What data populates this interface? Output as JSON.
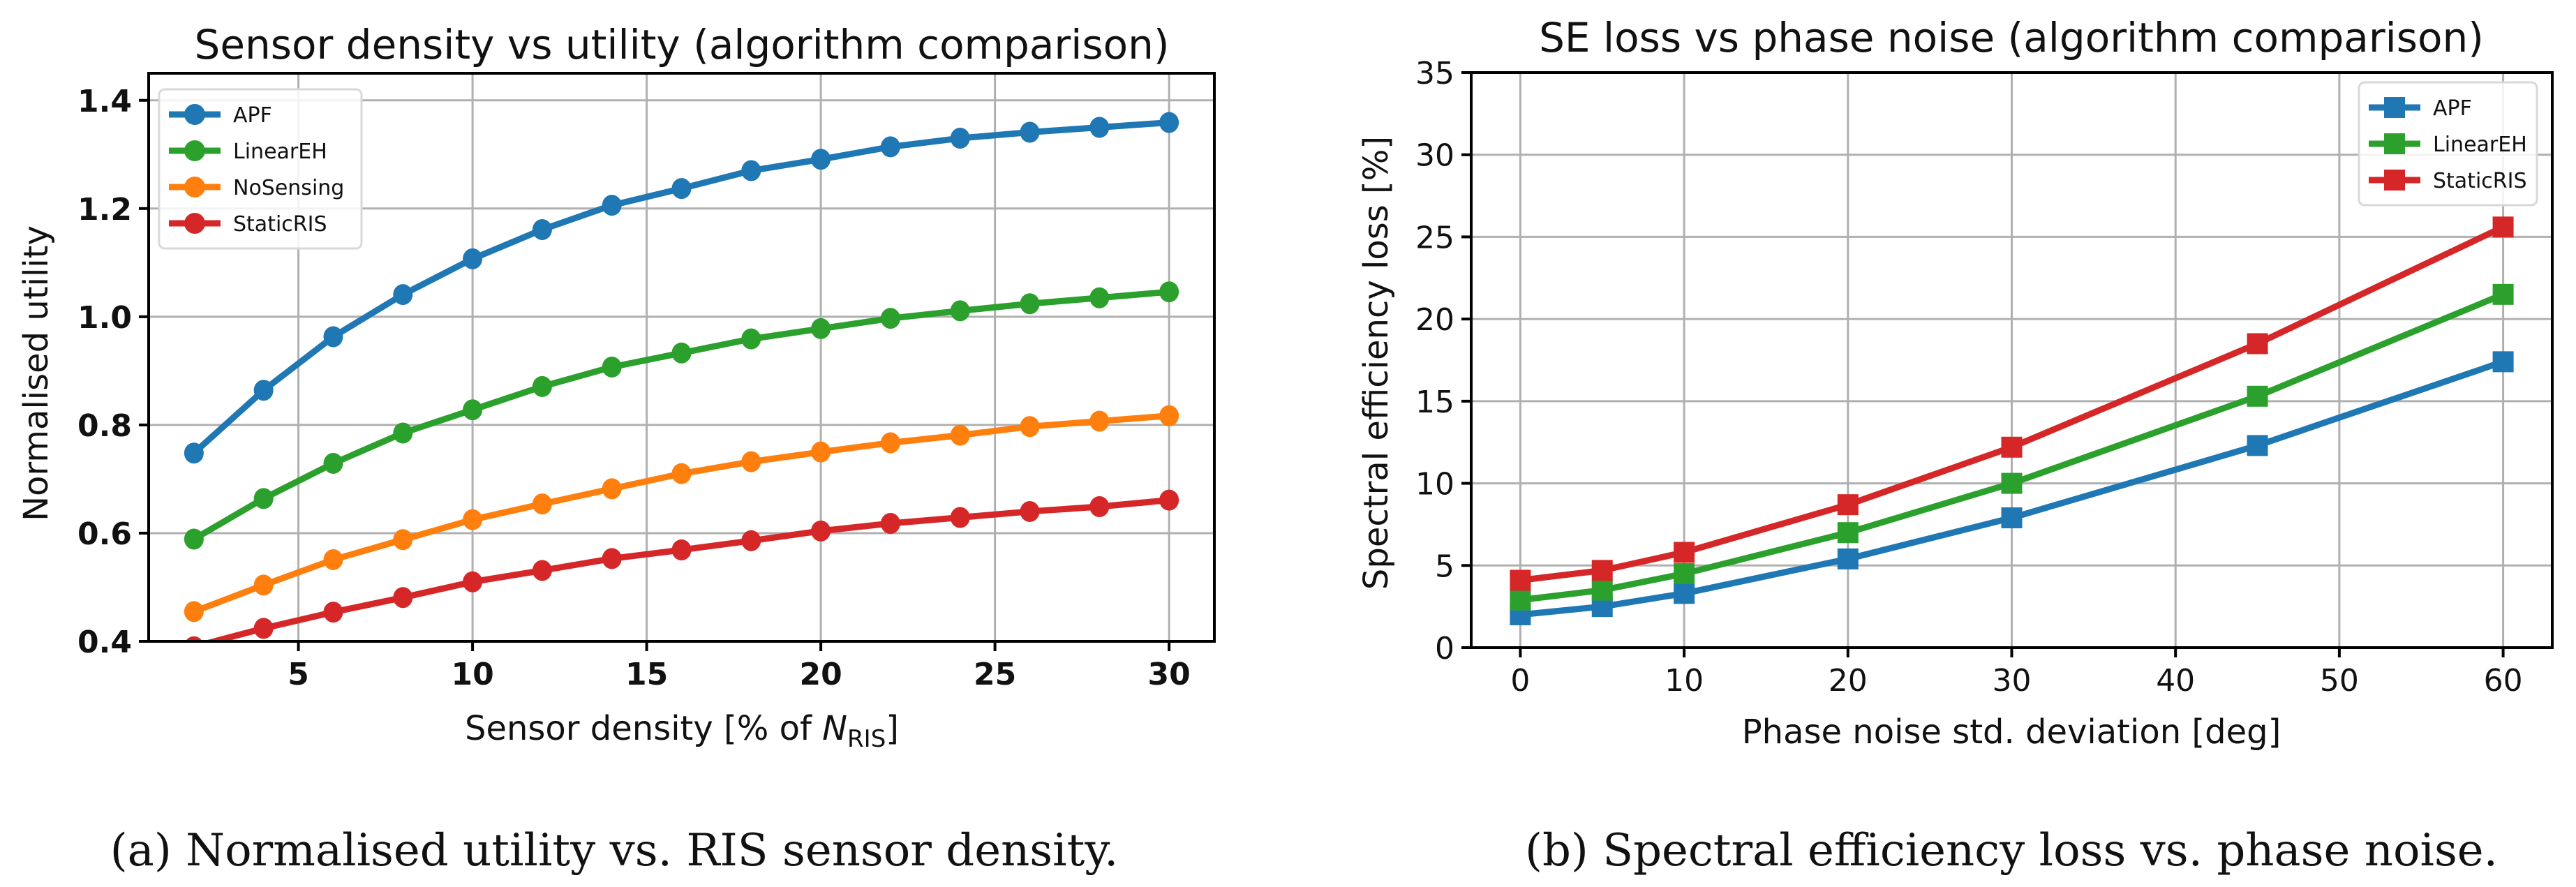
{
  "chart_data": [
    {
      "type": "line",
      "title": "Sensor density vs utility (algorithm comparison)",
      "xlabel": "Sensor density [% of N_RIS]",
      "xlabel_parts": {
        "prefix": "Sensor density [% of ",
        "var": "N",
        "sub": "RIS",
        "suffix": "]"
      },
      "ylabel": "Normalised utility",
      "xlim": [
        0.7,
        31.3
      ],
      "ylim": [
        0.4,
        1.45
      ],
      "xticks": [
        5,
        10,
        15,
        20,
        25,
        30
      ],
      "yticks": [
        0.4,
        0.6,
        0.8,
        1.0,
        1.2,
        1.4
      ],
      "ytick_labels": [
        "0.4",
        "0.6",
        "0.8",
        "1.0",
        "1.2",
        "1.4"
      ],
      "grid": true,
      "marker": "circle",
      "legend_position": "top-left",
      "x": [
        2,
        4,
        6,
        8,
        10,
        12,
        14,
        16,
        18,
        20,
        22,
        24,
        26,
        28,
        30
      ],
      "series": [
        {
          "name": "APF",
          "color": "#1f77b4",
          "values": [
            0.748,
            0.864,
            0.963,
            1.041,
            1.107,
            1.161,
            1.206,
            1.237,
            1.27,
            1.291,
            1.314,
            1.33,
            1.341,
            1.35,
            1.359
          ]
        },
        {
          "name": "LinearEH",
          "color": "#2ca02c",
          "values": [
            0.589,
            0.664,
            0.729,
            0.785,
            0.828,
            0.871,
            0.907,
            0.933,
            0.959,
            0.978,
            0.997,
            1.011,
            1.024,
            1.035,
            1.046
          ]
        },
        {
          "name": "NoSensing",
          "color": "#ff7f0e",
          "values": [
            0.455,
            0.504,
            0.551,
            0.588,
            0.625,
            0.654,
            0.682,
            0.71,
            0.732,
            0.75,
            0.767,
            0.781,
            0.797,
            0.807,
            0.817
          ]
        },
        {
          "name": "StaticRIS",
          "color": "#d62728",
          "values": [
            0.39,
            0.424,
            0.454,
            0.481,
            0.51,
            0.531,
            0.553,
            0.569,
            0.586,
            0.604,
            0.618,
            0.629,
            0.64,
            0.649,
            0.661
          ]
        }
      ],
      "caption": "(a) Normalised utility vs. RIS sensor density."
    },
    {
      "type": "line",
      "title": "SE loss vs phase noise (algorithm comparison)",
      "xlabel": "Phase noise std. deviation [deg]",
      "ylabel": "Spectral efficiency loss [%]",
      "xlim": [
        -3,
        63
      ],
      "ylim": [
        0,
        35
      ],
      "xticks": [
        0,
        10,
        20,
        30,
        40,
        50,
        60
      ],
      "yticks": [
        0,
        5,
        10,
        15,
        20,
        25,
        30,
        35
      ],
      "grid": true,
      "marker": "square",
      "legend_position": "top-right",
      "x": [
        0,
        5,
        10,
        20,
        30,
        45,
        60
      ],
      "series": [
        {
          "name": "APF",
          "color": "#1f77b4",
          "values": [
            2.0,
            2.5,
            3.3,
            5.4,
            7.9,
            12.3,
            17.4
          ]
        },
        {
          "name": "LinearEH",
          "color": "#2ca02c",
          "values": [
            2.9,
            3.5,
            4.5,
            7.0,
            10.0,
            15.3,
            21.5
          ]
        },
        {
          "name": "StaticRIS",
          "color": "#d62728",
          "values": [
            4.1,
            4.7,
            5.8,
            8.7,
            12.2,
            18.5,
            25.6
          ]
        }
      ],
      "caption": "(b) Spectral efficiency loss vs. phase noise."
    }
  ]
}
